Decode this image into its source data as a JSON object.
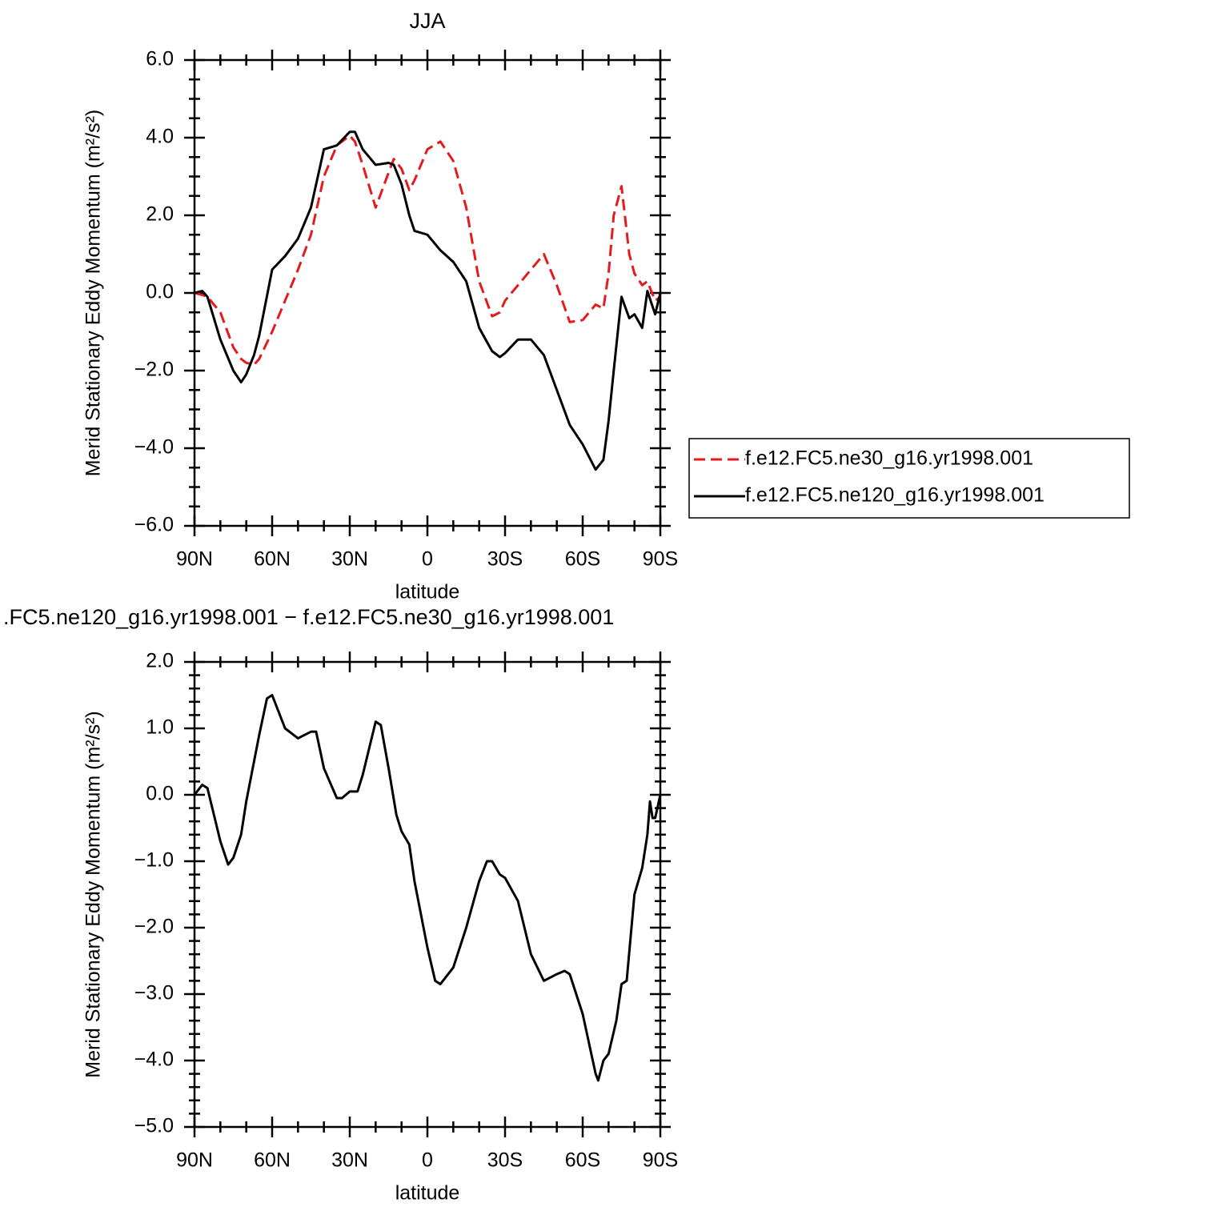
{
  "chart_data": [
    {
      "type": "line",
      "title": "JJA",
      "xlabel": "latitude",
      "ylabel": "Merid Stationary Eddy Momentum (m²/s²)",
      "x": [
        90,
        87,
        85,
        80,
        75,
        72,
        70,
        67,
        65,
        60,
        55,
        50,
        45,
        40,
        35,
        30,
        28,
        25,
        20,
        15,
        13,
        10,
        7,
        5,
        0,
        -5,
        -10,
        -15,
        -20,
        -25,
        -28,
        -30,
        -35,
        -40,
        -45,
        -50,
        -55,
        -60,
        -65,
        -68,
        -70,
        -72,
        -75,
        -78,
        -80,
        -83,
        -85,
        -88,
        -90
      ],
      "series": [
        {
          "name": "f.e12.FC5.ne30_g16.yr1998.001",
          "color": "#e41a1c",
          "dash": "dashed",
          "values": [
            0,
            -0.05,
            -0.1,
            -0.5,
            -1.4,
            -1.7,
            -1.8,
            -1.85,
            -1.7,
            -1.0,
            -0.2,
            0.6,
            1.5,
            3.0,
            3.8,
            4.05,
            3.9,
            3.3,
            2.2,
            3.1,
            3.45,
            3.2,
            2.65,
            2.9,
            3.7,
            3.9,
            3.4,
            2.2,
            0.3,
            -0.6,
            -0.5,
            -0.2,
            0.2,
            0.6,
            1.0,
            0.2,
            -0.75,
            -0.7,
            -0.3,
            -0.4,
            0.5,
            2.0,
            2.75,
            1.0,
            0.5,
            0.2,
            0.3,
            -0.2,
            -0.1
          ]
        },
        {
          "name": "f.e12.FC5.ne120_g16.yr1998.001",
          "color": "#000000",
          "dash": "solid",
          "values": [
            0,
            0.05,
            -0.1,
            -1.2,
            -2.0,
            -2.3,
            -2.1,
            -1.6,
            -1.1,
            0.6,
            0.95,
            1.4,
            2.2,
            3.7,
            3.8,
            4.15,
            4.15,
            3.7,
            3.3,
            3.35,
            3.3,
            2.8,
            2.0,
            1.6,
            1.5,
            1.1,
            0.8,
            0.3,
            -0.9,
            -1.5,
            -1.65,
            -1.55,
            -1.2,
            -1.2,
            -1.6,
            -2.5,
            -3.4,
            -3.9,
            -4.55,
            -4.3,
            -3.3,
            -2.0,
            -0.1,
            -0.65,
            -0.55,
            -0.9,
            0.05,
            -0.55,
            0
          ]
        }
      ],
      "xlim": [
        90,
        -90
      ],
      "xticks": [
        {
          "value": 90,
          "label": "90N"
        },
        {
          "value": 60,
          "label": "60N"
        },
        {
          "value": 30,
          "label": "30N"
        },
        0,
        {
          "value": -30,
          "label": "30S"
        },
        {
          "value": -60,
          "label": "60S"
        },
        {
          "value": -90,
          "label": "90S"
        }
      ],
      "ylim": [
        -6,
        6
      ],
      "yticks": [
        {
          "value": -6,
          "label": "−6.0"
        },
        {
          "value": -4,
          "label": "−4.0"
        },
        {
          "value": -2,
          "label": "−2.0"
        },
        {
          "value": 0,
          "label": "0.0"
        },
        {
          "value": 2,
          "label": "2.0"
        },
        {
          "value": 4,
          "label": "4.0"
        },
        {
          "value": 6,
          "label": "6.0"
        }
      ],
      "legend": "outside-right"
    },
    {
      "type": "line",
      "title": ".FC5.ne120_g16.yr1998.001 − f.e12.FC5.ne30_g16.yr1998.001",
      "xlabel": "latitude",
      "ylabel": "Merid Stationary Eddy Momentum (m²/s²)",
      "x": [
        90,
        87,
        85,
        80,
        77,
        75,
        72,
        70,
        65,
        62,
        60,
        55,
        50,
        45,
        43,
        40,
        35,
        33,
        30,
        27,
        25,
        20,
        18,
        15,
        12,
        10,
        7,
        5,
        0,
        -3,
        -5,
        -10,
        -15,
        -20,
        -23,
        -25,
        -28,
        -30,
        -35,
        -40,
        -45,
        -50,
        -53,
        -55,
        -60,
        -65,
        -66,
        -68,
        -70,
        -73,
        -75,
        -77,
        -80,
        -83,
        -85,
        -86,
        -87,
        -88,
        -90
      ],
      "color": "#000000",
      "values": [
        0,
        0.15,
        0.1,
        -0.7,
        -1.05,
        -0.95,
        -0.6,
        -0.1,
        0.9,
        1.45,
        1.5,
        1.0,
        0.85,
        0.95,
        0.95,
        0.4,
        -0.05,
        -0.05,
        0.05,
        0.05,
        0.3,
        1.1,
        1.05,
        0.4,
        -0.3,
        -0.55,
        -0.75,
        -1.3,
        -2.3,
        -2.8,
        -2.85,
        -2.6,
        -2.0,
        -1.3,
        -1.0,
        -1.0,
        -1.2,
        -1.25,
        -1.6,
        -2.4,
        -2.8,
        -2.7,
        -2.65,
        -2.7,
        -3.3,
        -4.2,
        -4.3,
        -4.0,
        -3.9,
        -3.4,
        -2.85,
        -2.8,
        -1.5,
        -1.1,
        -0.6,
        -0.1,
        -0.35,
        -0.35,
        0
      ],
      "xlim": [
        90,
        -90
      ],
      "xticks": [
        {
          "value": 90,
          "label": "90N"
        },
        {
          "value": 60,
          "label": "60N"
        },
        {
          "value": 30,
          "label": "30N"
        },
        0,
        {
          "value": -30,
          "label": "30S"
        },
        {
          "value": -60,
          "label": "60S"
        },
        {
          "value": -90,
          "label": "90S"
        }
      ],
      "ylim": [
        -5,
        2
      ],
      "yticks": [
        {
          "value": -5,
          "label": "−5.0"
        },
        {
          "value": -4,
          "label": "−4.0"
        },
        {
          "value": -3,
          "label": "−3.0"
        },
        {
          "value": -2,
          "label": "−2.0"
        },
        {
          "value": -1,
          "label": "−1.0"
        },
        {
          "value": 0,
          "label": "0.0"
        },
        {
          "value": 1,
          "label": "1.0"
        },
        {
          "value": 2,
          "label": "2.0"
        }
      ]
    }
  ]
}
